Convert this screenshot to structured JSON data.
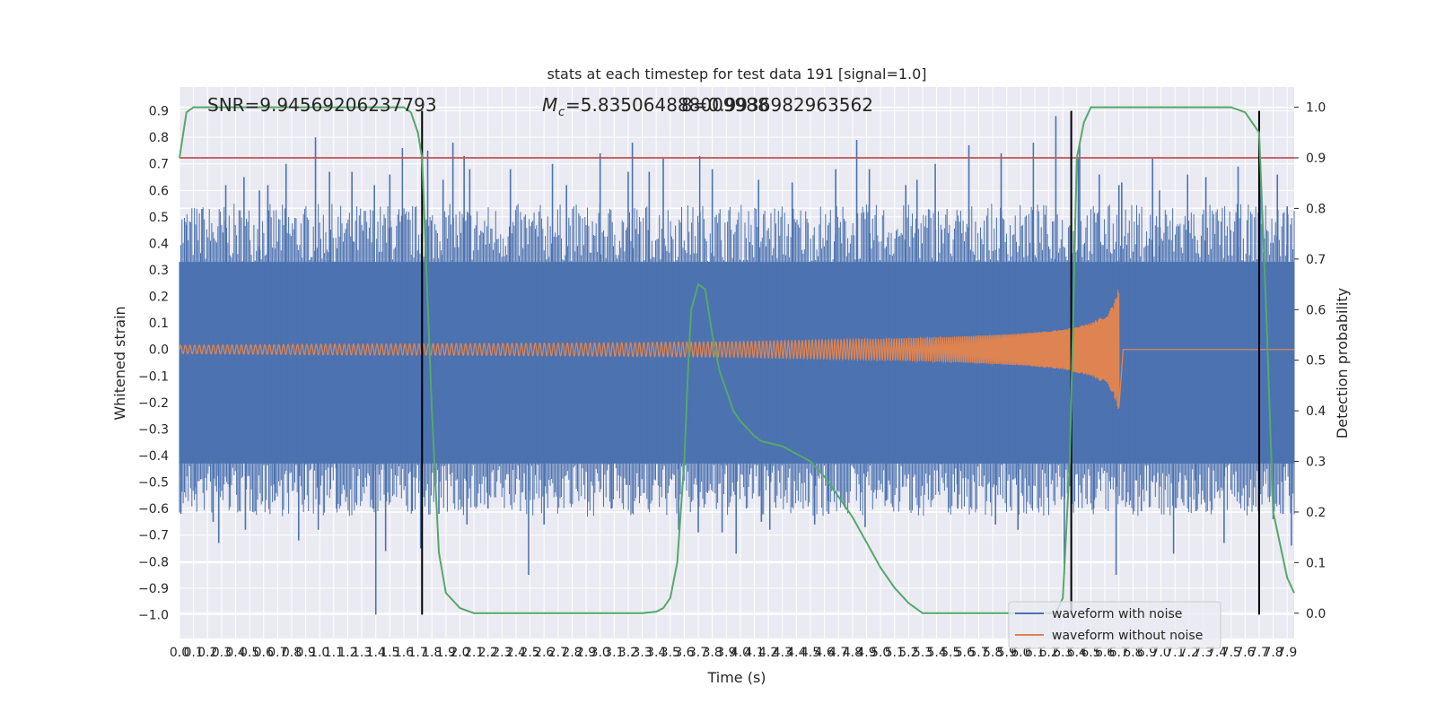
{
  "chart_data": {
    "type": "line",
    "title": "stats at each timestep for test data 191 [signal=1.0]",
    "xlabel": "Time (s)",
    "ylabel": "Whitened strain",
    "y2label": "Detection probability",
    "xlim": [
      0,
      7.95
    ],
    "ylim": [
      -1.09,
      0.99
    ],
    "y2lim": [
      -0.05,
      1.04
    ],
    "x_ticks": [
      0.0,
      0.1,
      0.2,
      0.3,
      0.4,
      0.5,
      0.6,
      0.7,
      0.8,
      0.9,
      1.0,
      1.1,
      1.2,
      1.3,
      1.4,
      1.5,
      1.6,
      1.7,
      1.8,
      1.9,
      2.0,
      2.1,
      2.2,
      2.3,
      2.4,
      2.5,
      2.6,
      2.7,
      2.8,
      2.9,
      3.0,
      3.1,
      3.2,
      3.3,
      3.4,
      3.5,
      3.6,
      3.7,
      3.8,
      3.9,
      4.0,
      4.1,
      4.2,
      4.3,
      4.4,
      4.5,
      4.6,
      4.7,
      4.8,
      4.9,
      5.0,
      5.1,
      5.2,
      5.3,
      5.4,
      5.5,
      5.6,
      5.7,
      5.8,
      5.9,
      6.0,
      6.1,
      6.2,
      6.3,
      6.4,
      6.5,
      6.6,
      6.7,
      6.8,
      6.9,
      7.0,
      7.1,
      7.2,
      7.3,
      7.4,
      7.5,
      7.6,
      7.7,
      7.8,
      7.9
    ],
    "y_ticks": [
      -1.0,
      -0.9,
      -0.8,
      -0.7,
      -0.6,
      -0.5,
      -0.4,
      -0.3,
      -0.2,
      -0.1,
      0.0,
      0.1,
      0.2,
      0.3,
      0.4,
      0.5,
      0.6,
      0.7,
      0.8,
      0.9
    ],
    "y2_ticks": [
      0.0,
      0.1,
      0.2,
      0.3,
      0.4,
      0.5,
      0.6,
      0.7,
      0.8,
      0.9,
      1.0
    ],
    "annotations": {
      "snr": "SNR=9.94569206237793",
      "mc": "=5.835064888009988",
      "mc_symbol": "M",
      "mc_sub": "c",
      "overlap": "8=0.9936982963562"
    },
    "threshold": {
      "y2": 0.9,
      "color": "#c44e52"
    },
    "vlines": [
      1.73,
      6.36,
      7.7
    ],
    "series": [
      {
        "name": "waveform with noise",
        "color": "#4c72b0",
        "axis": "left",
        "kind": "noise",
        "envelope": [
          -0.43,
          0.33
        ],
        "spikes": [
          [
            0.01,
            -0.62
          ],
          [
            0.05,
            0.47
          ],
          [
            0.11,
            -0.52
          ],
          [
            0.16,
            0.53
          ],
          [
            0.24,
            -0.65
          ],
          [
            0.28,
            -0.73
          ],
          [
            0.33,
            0.62
          ],
          [
            0.36,
            -0.52
          ],
          [
            0.46,
            0.65
          ],
          [
            0.47,
            -0.68
          ],
          [
            0.57,
            0.6
          ],
          [
            0.63,
            0.62
          ],
          [
            0.68,
            -0.57
          ],
          [
            0.76,
            0.7
          ],
          [
            0.85,
            -0.72
          ],
          [
            0.97,
            0.8
          ],
          [
            0.99,
            -0.68
          ],
          [
            1.07,
            0.67
          ],
          [
            1.12,
            -0.6
          ],
          [
            1.23,
            0.67
          ],
          [
            1.38,
            -0.6
          ],
          [
            1.39,
            0.62
          ],
          [
            1.4,
            -1.0
          ],
          [
            1.47,
            -0.76
          ],
          [
            1.5,
            0.66
          ],
          [
            1.59,
            0.76
          ],
          [
            1.66,
            -0.61
          ],
          [
            1.72,
            -0.75
          ],
          [
            1.77,
            0.75
          ],
          [
            1.85,
            -0.62
          ],
          [
            1.88,
            0.64
          ],
          [
            1.95,
            0.78
          ],
          [
            2.03,
            0.73
          ],
          [
            2.05,
            -0.66
          ],
          [
            2.07,
            0.68
          ],
          [
            2.2,
            -0.6
          ],
          [
            2.36,
            0.68
          ],
          [
            2.49,
            -0.85
          ],
          [
            2.6,
            -0.66
          ],
          [
            2.66,
            0.7
          ],
          [
            2.76,
            0.62
          ],
          [
            3.0,
            0.74
          ],
          [
            3.08,
            -0.6
          ],
          [
            3.2,
            0.67
          ],
          [
            3.23,
            0.78
          ],
          [
            3.35,
            0.67
          ],
          [
            3.45,
            0.72
          ],
          [
            3.56,
            -0.68
          ],
          [
            3.71,
            0.73
          ],
          [
            3.7,
            -0.69
          ],
          [
            3.8,
            0.68
          ],
          [
            3.87,
            -0.69
          ],
          [
            3.97,
            -0.77
          ],
          [
            4.13,
            0.64
          ],
          [
            4.15,
            -0.65
          ],
          [
            4.21,
            -0.68
          ],
          [
            4.37,
            0.63
          ],
          [
            4.53,
            -0.66
          ],
          [
            4.63,
            -0.62
          ],
          [
            4.68,
            0.68
          ],
          [
            4.83,
            0.79
          ],
          [
            4.89,
            -0.67
          ],
          [
            4.92,
            0.68
          ],
          [
            5.04,
            -0.57
          ],
          [
            5.18,
            0.62
          ],
          [
            5.26,
            0.64
          ],
          [
            5.39,
            0.7
          ],
          [
            5.55,
            -0.6
          ],
          [
            5.63,
            0.77
          ],
          [
            5.82,
            -0.66
          ],
          [
            5.86,
            0.74
          ],
          [
            5.98,
            -0.68
          ],
          [
            6.09,
            0.78
          ],
          [
            6.25,
            0.88
          ],
          [
            6.31,
            -0.85
          ],
          [
            6.41,
            0.72
          ],
          [
            6.42,
            0.78
          ],
          [
            6.52,
            -0.6
          ],
          [
            6.56,
            0.66
          ],
          [
            6.68,
            -0.85
          ],
          [
            6.7,
            0.62
          ],
          [
            6.72,
            0.63
          ],
          [
            6.86,
            -0.61
          ],
          [
            6.94,
            0.72
          ],
          [
            6.99,
            0.6
          ],
          [
            7.09,
            -0.77
          ],
          [
            7.19,
            0.66
          ],
          [
            7.25,
            -0.61
          ],
          [
            7.32,
            0.65
          ],
          [
            7.45,
            -0.73
          ],
          [
            7.55,
            0.69
          ],
          [
            7.71,
            0.66
          ],
          [
            7.8,
            -0.64
          ],
          [
            7.83,
            0.66
          ],
          [
            7.87,
            -0.62
          ],
          [
            7.9,
            0.54
          ],
          [
            7.93,
            -0.74
          ]
        ]
      },
      {
        "name": "waveform without noise",
        "color": "#dd8452",
        "axis": "left",
        "kind": "chirp",
        "amplitude_points": [
          [
            0.0,
            0.016
          ],
          [
            1.0,
            0.02
          ],
          [
            2.0,
            0.022
          ],
          [
            3.0,
            0.025
          ],
          [
            4.0,
            0.03
          ],
          [
            5.0,
            0.04
          ],
          [
            5.5,
            0.047
          ],
          [
            6.0,
            0.06
          ],
          [
            6.3,
            0.075
          ],
          [
            6.5,
            0.1
          ],
          [
            6.6,
            0.13
          ],
          [
            6.65,
            0.16
          ],
          [
            6.68,
            0.2
          ],
          [
            6.7,
            0.24
          ]
        ],
        "merger_time": 6.7,
        "ringdown_end": 6.73,
        "start_frequency_hz": 30,
        "end_frequency_hz": 160
      },
      {
        "name": "Detection probability",
        "color": "#55a868",
        "axis": "right",
        "kind": "line",
        "x": [
          0.0,
          0.05,
          0.1,
          0.2,
          0.5,
          1.0,
          1.6,
          1.65,
          1.7,
          1.73,
          1.8,
          1.85,
          1.9,
          2.0,
          2.1,
          2.2,
          3.0,
          3.3,
          3.4,
          3.45,
          3.5,
          3.55,
          3.6,
          3.63,
          3.65,
          3.7,
          3.75,
          3.8,
          3.85,
          3.9,
          3.95,
          4.0,
          4.1,
          4.15,
          4.3,
          4.5,
          4.6,
          4.7,
          4.8,
          4.9,
          5.0,
          5.1,
          5.2,
          5.3,
          5.4,
          5.5,
          6.0,
          6.25,
          6.3,
          6.35,
          6.4,
          6.45,
          6.5,
          6.6,
          6.8,
          7.0,
          7.5,
          7.6,
          7.65,
          7.7,
          7.75,
          7.8,
          7.9,
          7.95
        ],
        "y": [
          0.9,
          0.99,
          1.0,
          1.0,
          1.0,
          1.0,
          1.0,
          0.99,
          0.95,
          0.9,
          0.4,
          0.12,
          0.04,
          0.01,
          0.0,
          0.0,
          0.0,
          0.0,
          0.003,
          0.01,
          0.03,
          0.1,
          0.3,
          0.5,
          0.6,
          0.65,
          0.64,
          0.55,
          0.48,
          0.44,
          0.4,
          0.38,
          0.35,
          0.34,
          0.33,
          0.3,
          0.27,
          0.23,
          0.19,
          0.14,
          0.09,
          0.05,
          0.02,
          0.0,
          0.0,
          0.0,
          0.0,
          0.0,
          0.03,
          0.3,
          0.9,
          0.97,
          1.0,
          1.0,
          1.0,
          1.0,
          1.0,
          0.99,
          0.97,
          0.95,
          0.6,
          0.2,
          0.07,
          0.04
        ]
      }
    ],
    "legend": {
      "position": "lower-right"
    },
    "grid": true
  }
}
